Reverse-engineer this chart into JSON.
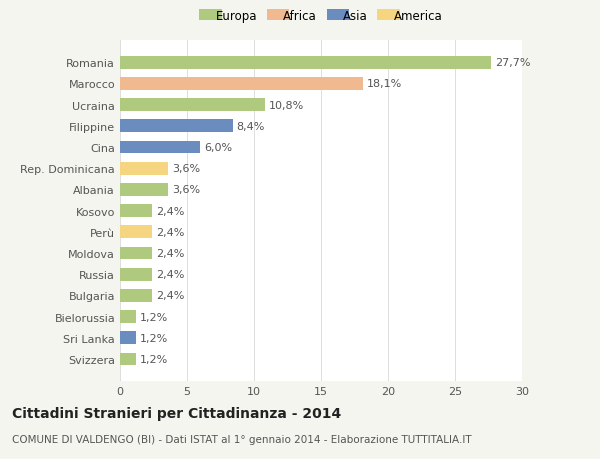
{
  "countries": [
    "Romania",
    "Marocco",
    "Ucraina",
    "Filippine",
    "Cina",
    "Rep. Dominicana",
    "Albania",
    "Kosovo",
    "Perù",
    "Moldova",
    "Russia",
    "Bulgaria",
    "Bielorussia",
    "Sri Lanka",
    "Svizzera"
  ],
  "values": [
    27.7,
    18.1,
    10.8,
    8.4,
    6.0,
    3.6,
    3.6,
    2.4,
    2.4,
    2.4,
    2.4,
    2.4,
    1.2,
    1.2,
    1.2
  ],
  "labels": [
    "27,7%",
    "18,1%",
    "10,8%",
    "8,4%",
    "6,0%",
    "3,6%",
    "3,6%",
    "2,4%",
    "2,4%",
    "2,4%",
    "2,4%",
    "2,4%",
    "1,2%",
    "1,2%",
    "1,2%"
  ],
  "continents": [
    "Europa",
    "Africa",
    "Europa",
    "Asia",
    "Asia",
    "America",
    "Europa",
    "Europa",
    "America",
    "Europa",
    "Europa",
    "Europa",
    "Europa",
    "Asia",
    "Europa"
  ],
  "colors": {
    "Europa": "#afc97e",
    "Africa": "#f0b990",
    "Asia": "#6b8cbf",
    "America": "#f5d580"
  },
  "title": "Cittadini Stranieri per Cittadinanza - 2014",
  "subtitle": "COMUNE DI VALDENGO (BI) - Dati ISTAT al 1° gennaio 2014 - Elaborazione TUTTITALIA.IT",
  "xlim": [
    0,
    30
  ],
  "xticks": [
    0,
    5,
    10,
    15,
    20,
    25,
    30
  ],
  "background_color": "#f5f5f0",
  "bar_background": "#ffffff",
  "label_color": "#555555",
  "title_color": "#222222",
  "subtitle_color": "#555555",
  "title_fontsize": 10,
  "subtitle_fontsize": 7.5,
  "tick_fontsize": 8,
  "label_fontsize": 8,
  "legend_order": [
    "Europa",
    "Africa",
    "Asia",
    "America"
  ]
}
